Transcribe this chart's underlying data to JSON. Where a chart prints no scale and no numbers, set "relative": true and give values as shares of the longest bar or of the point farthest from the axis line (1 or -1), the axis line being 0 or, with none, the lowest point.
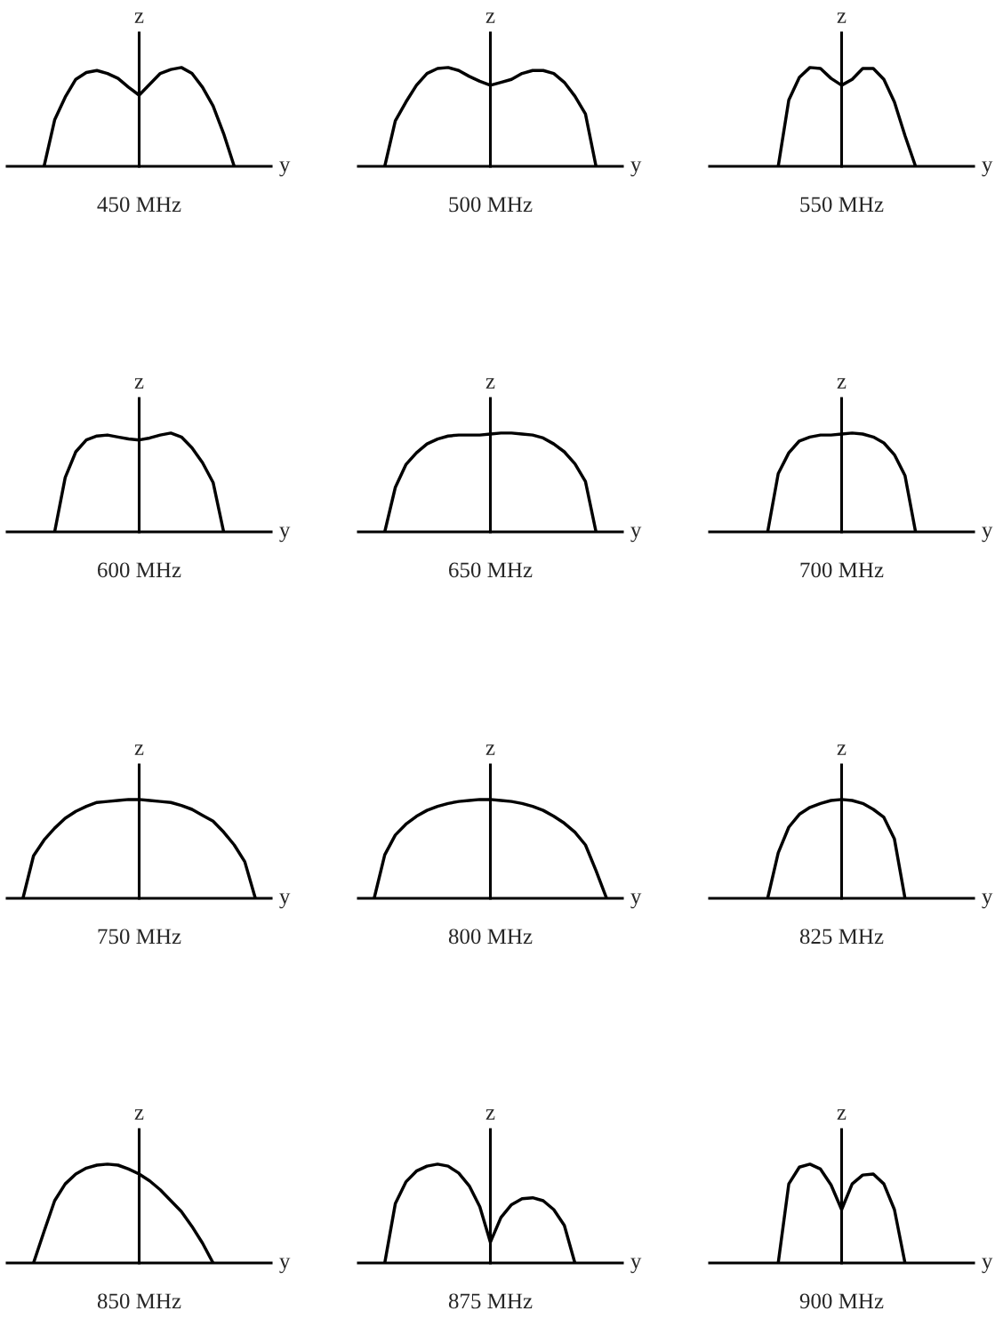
{
  "chart_data": [
    {
      "type": "line",
      "title": "450 MHz",
      "xlabel": "y",
      "ylabel": "z",
      "relative": true,
      "categories": [
        null,
        null,
        null,
        null,
        null,
        null,
        null,
        null,
        null,
        null,
        null,
        null,
        null,
        null,
        null,
        null,
        null,
        null,
        null,
        null,
        null,
        null,
        null,
        null,
        null
      ],
      "series": [
        {
          "color": "#000000",
          "values": [
            null,
            null,
            null,
            0,
            0.47,
            0.7,
            0.88,
            0.95,
            0.97,
            0.94,
            0.89,
            0.8,
            0.72,
            0.83,
            0.94,
            0.98,
            1.0,
            0.94,
            0.8,
            0.61,
            0.33,
            0,
            null,
            null,
            null
          ]
        }
      ]
    },
    {
      "type": "line",
      "title": "500 MHz",
      "xlabel": "y",
      "ylabel": "z",
      "relative": true,
      "categories": [
        null,
        null,
        null,
        null,
        null,
        null,
        null,
        null,
        null,
        null,
        null,
        null,
        null,
        null,
        null,
        null,
        null,
        null,
        null,
        null,
        null,
        null,
        null,
        null,
        null
      ],
      "series": [
        {
          "color": "#000000",
          "values": [
            null,
            null,
            0,
            0.46,
            0.65,
            0.82,
            0.94,
            0.99,
            1.0,
            0.97,
            0.91,
            0.86,
            0.82,
            0.85,
            0.88,
            0.94,
            0.97,
            0.97,
            0.94,
            0.85,
            0.71,
            0.53,
            0,
            null,
            null
          ]
        }
      ]
    },
    {
      "type": "line",
      "title": "550 MHz",
      "xlabel": "y",
      "ylabel": "z",
      "relative": true,
      "categories": [
        null,
        null,
        null,
        null,
        null,
        null,
        null,
        null,
        null,
        null,
        null,
        null,
        null,
        null,
        null,
        null,
        null,
        null,
        null,
        null,
        null,
        null,
        null,
        null,
        null
      ],
      "series": [
        {
          "color": "#000000",
          "values": [
            null,
            null,
            null,
            null,
            null,
            null,
            0,
            0.67,
            0.9,
            1.0,
            0.99,
            0.89,
            0.82,
            0.88,
            0.99,
            0.99,
            0.88,
            0.65,
            0.31,
            0,
            null,
            null,
            null,
            null,
            null
          ]
        }
      ]
    },
    {
      "type": "line",
      "title": "600 MHz",
      "xlabel": "y",
      "ylabel": "z",
      "relative": true,
      "categories": [
        null,
        null,
        null,
        null,
        null,
        null,
        null,
        null,
        null,
        null,
        null,
        null,
        null,
        null,
        null,
        null,
        null,
        null,
        null,
        null,
        null,
        null,
        null,
        null,
        null
      ],
      "series": [
        {
          "color": "#000000",
          "values": [
            null,
            null,
            null,
            null,
            0,
            0.55,
            0.81,
            0.93,
            0.97,
            0.98,
            0.96,
            0.94,
            0.93,
            0.95,
            0.98,
            1.0,
            0.96,
            0.85,
            0.7,
            0.5,
            0,
            null,
            null,
            null,
            null
          ]
        }
      ]
    },
    {
      "type": "line",
      "title": "650 MHz",
      "xlabel": "y",
      "ylabel": "z",
      "relative": true,
      "categories": [
        null,
        null,
        null,
        null,
        null,
        null,
        null,
        null,
        null,
        null,
        null,
        null,
        null,
        null,
        null,
        null,
        null,
        null,
        null,
        null,
        null,
        null,
        null,
        null,
        null
      ],
      "series": [
        {
          "color": "#000000",
          "values": [
            null,
            null,
            0,
            0.45,
            0.68,
            0.8,
            0.89,
            0.94,
            0.97,
            0.98,
            0.98,
            0.98,
            0.99,
            1.0,
            1.0,
            0.99,
            0.98,
            0.95,
            0.89,
            0.81,
            0.69,
            0.51,
            0,
            null,
            null
          ]
        }
      ]
    },
    {
      "type": "line",
      "title": "700 MHz",
      "xlabel": "y",
      "ylabel": "z",
      "relative": true,
      "categories": [
        null,
        null,
        null,
        null,
        null,
        null,
        null,
        null,
        null,
        null,
        null,
        null,
        null,
        null,
        null,
        null,
        null,
        null,
        null,
        null,
        null,
        null,
        null,
        null,
        null
      ],
      "series": [
        {
          "color": "#000000",
          "values": [
            null,
            null,
            null,
            null,
            null,
            0,
            0.59,
            0.8,
            0.92,
            0.96,
            0.98,
            0.98,
            0.99,
            1.0,
            0.99,
            0.96,
            0.9,
            0.78,
            0.57,
            0,
            null,
            null,
            null,
            null,
            null
          ]
        }
      ]
    },
    {
      "type": "line",
      "title": "750 MHz",
      "xlabel": "y",
      "ylabel": "z",
      "relative": true,
      "categories": [
        null,
        null,
        null,
        null,
        null,
        null,
        null,
        null,
        null,
        null,
        null,
        null,
        null,
        null,
        null,
        null,
        null,
        null,
        null,
        null,
        null,
        null,
        null,
        null,
        null
      ],
      "series": [
        {
          "color": "#000000",
          "values": [
            null,
            0,
            0.43,
            0.59,
            0.71,
            0.81,
            0.88,
            0.93,
            0.97,
            0.98,
            0.99,
            1.0,
            1.0,
            0.99,
            0.98,
            0.97,
            0.94,
            0.9,
            0.84,
            0.78,
            0.67,
            0.54,
            0.37,
            0,
            null
          ]
        }
      ]
    },
    {
      "type": "line",
      "title": "800 MHz",
      "xlabel": "y",
      "ylabel": "z",
      "relative": true,
      "categories": [
        null,
        null,
        null,
        null,
        null,
        null,
        null,
        null,
        null,
        null,
        null,
        null,
        null,
        null,
        null,
        null,
        null,
        null,
        null,
        null,
        null,
        null,
        null,
        null,
        null
      ],
      "series": [
        {
          "color": "#000000",
          "values": [
            null,
            0,
            0.44,
            0.64,
            0.75,
            0.83,
            0.89,
            0.93,
            0.96,
            0.98,
            0.99,
            1.0,
            1.0,
            0.99,
            0.98,
            0.96,
            0.93,
            0.89,
            0.83,
            0.76,
            0.67,
            0.54,
            0.28,
            0,
            null
          ]
        }
      ]
    },
    {
      "type": "line",
      "title": "825 MHz",
      "xlabel": "y",
      "ylabel": "z",
      "relative": true,
      "categories": [
        null,
        null,
        null,
        null,
        null,
        null,
        null,
        null,
        null,
        null,
        null,
        null,
        null,
        null,
        null,
        null,
        null,
        null,
        null,
        null,
        null,
        null,
        null,
        null,
        null
      ],
      "series": [
        {
          "color": "#000000",
          "values": [
            null,
            null,
            null,
            null,
            null,
            0,
            0.46,
            0.72,
            0.85,
            0.92,
            0.96,
            0.99,
            1.0,
            0.99,
            0.96,
            0.9,
            0.82,
            0.6,
            0,
            null,
            null,
            null,
            null,
            null,
            null
          ]
        }
      ]
    },
    {
      "type": "line",
      "title": "850 MHz",
      "xlabel": "y",
      "ylabel": "z",
      "relative": true,
      "categories": [
        null,
        null,
        null,
        null,
        null,
        null,
        null,
        null,
        null,
        null,
        null,
        null,
        null,
        null,
        null,
        null,
        null,
        null,
        null,
        null,
        null,
        null,
        null,
        null,
        null
      ],
      "series": [
        {
          "color": "#000000",
          "values": [
            null,
            null,
            0,
            0.32,
            0.63,
            0.8,
            0.9,
            0.96,
            0.99,
            1.0,
            0.99,
            0.95,
            0.9,
            0.83,
            0.74,
            0.63,
            0.52,
            0.37,
            0.2,
            0,
            null,
            null,
            null,
            null,
            null
          ]
        }
      ]
    },
    {
      "type": "line",
      "title": "875 MHz",
      "xlabel": "y",
      "ylabel": "z",
      "relative": true,
      "categories": [
        null,
        null,
        null,
        null,
        null,
        null,
        null,
        null,
        null,
        null,
        null,
        null,
        null,
        null,
        null,
        null,
        null,
        null,
        null,
        null,
        null,
        null,
        null,
        null,
        null
      ],
      "series": [
        {
          "color": "#000000",
          "values": [
            null,
            null,
            0,
            0.6,
            0.82,
            0.93,
            0.98,
            1.0,
            0.98,
            0.91,
            0.78,
            0.57,
            0.21,
            0.46,
            0.59,
            0.65,
            0.66,
            0.63,
            0.54,
            0.38,
            0,
            null,
            null,
            null,
            null
          ]
        }
      ]
    },
    {
      "type": "line",
      "title": "900 MHz",
      "xlabel": "y",
      "ylabel": "z",
      "relative": true,
      "categories": [
        null,
        null,
        null,
        null,
        null,
        null,
        null,
        null,
        null,
        null,
        null,
        null,
        null,
        null,
        null,
        null,
        null,
        null,
        null,
        null,
        null,
        null,
        null,
        null,
        null
      ],
      "series": [
        {
          "color": "#000000",
          "values": [
            null,
            null,
            null,
            null,
            null,
            null,
            0,
            0.8,
            0.97,
            1.0,
            0.95,
            0.79,
            0.54,
            0.8,
            0.89,
            0.9,
            0.8,
            0.54,
            0,
            null,
            null,
            null,
            null,
            null,
            null
          ]
        }
      ]
    }
  ]
}
